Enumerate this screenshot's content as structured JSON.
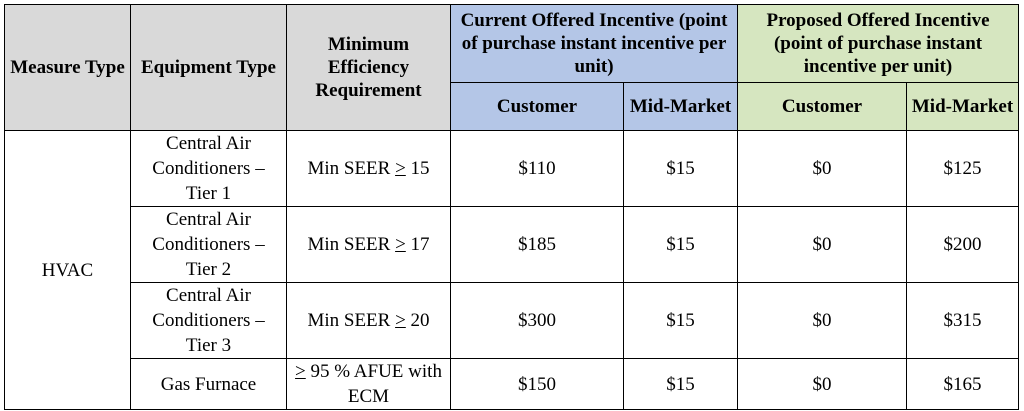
{
  "header": {
    "measure_type": "Measure Type",
    "equipment_type": "Equipment Type",
    "min_efficiency": "Minimum Efficiency Requirement",
    "current_group": "Current Offered Incentive (point of purchase instant incentive per unit)",
    "proposed_group": "Proposed Offered Incentive (point of purchase instant incentive per unit)",
    "current_customer": "Customer",
    "current_mid_market": "Mid-Market",
    "proposed_customer": "Customer",
    "proposed_mid_market": "Mid-Market"
  },
  "measure": "HVAC",
  "rows": [
    {
      "equipment": "Central Air Conditioners – Tier 1",
      "efficiency_prefix": "Min SEER ",
      "efficiency_symbol": ">",
      "efficiency_suffix": " 15",
      "current_customer": "$110",
      "current_mid_market": "$15",
      "proposed_customer": "$0",
      "proposed_mid_market": "$125"
    },
    {
      "equipment": "Central Air Conditioners – Tier 2",
      "efficiency_prefix": "Min SEER ",
      "efficiency_symbol": ">",
      "efficiency_suffix": " 17",
      "current_customer": "$185",
      "current_mid_market": "$15",
      "proposed_customer": "$0",
      "proposed_mid_market": "$200"
    },
    {
      "equipment": "Central Air Conditioners – Tier 3",
      "efficiency_prefix": "Min SEER ",
      "efficiency_symbol": ">",
      "efficiency_suffix": " 20",
      "current_customer": "$300",
      "current_mid_market": "$15",
      "proposed_customer": "$0",
      "proposed_mid_market": "$315"
    },
    {
      "equipment": "Gas Furnace",
      "efficiency_prefix": "",
      "efficiency_symbol": ">",
      "efficiency_suffix": " 95 % AFUE with ECM",
      "current_customer": "$150",
      "current_mid_market": "$15",
      "proposed_customer": "$0",
      "proposed_mid_market": "$165"
    }
  ],
  "colors": {
    "header_grey": "#d9d9d9",
    "current_blue": "#b4c6e7",
    "proposed_green": "#d6e6c0"
  }
}
